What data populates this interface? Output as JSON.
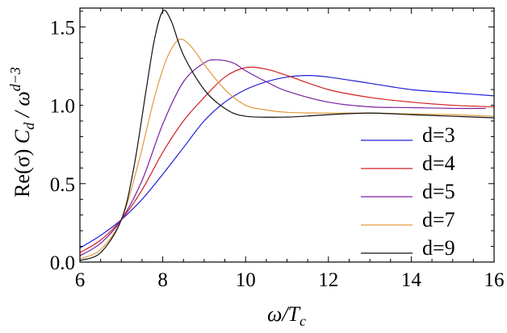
{
  "chart_data": {
    "type": "line",
    "title": "",
    "xlabel": "ω/T_c",
    "ylabel": "Re(σ) C_d / ω^(d−3)",
    "xlabel_parts": {
      "main": "ω/T",
      "sub": "c"
    },
    "ylabel_parts": {
      "pre": "Re(σ) ",
      "c": "C",
      "csub": "d",
      "mid": " / ω",
      "sup": "d−3"
    },
    "xlim": [
      6,
      16
    ],
    "ylim": [
      0,
      1.62
    ],
    "xticks": [
      6,
      8,
      10,
      12,
      14,
      16
    ],
    "xtick_labels": [
      "6",
      "8",
      "10",
      "12",
      "14",
      "16"
    ],
    "yticks": [
      0,
      0.5,
      1.0,
      1.5
    ],
    "ytick_labels": [
      "0.0",
      "0.5",
      "1.0",
      "1.5"
    ],
    "grid": false,
    "legend_position": "bottom-right",
    "series": [
      {
        "name": "d=3",
        "color": "#1f1fd6",
        "points": [
          [
            6,
            0.09
          ],
          [
            6.5,
            0.17
          ],
          [
            7,
            0.27
          ],
          [
            7.5,
            0.4
          ],
          [
            8,
            0.56
          ],
          [
            8.5,
            0.73
          ],
          [
            9,
            0.9
          ],
          [
            9.5,
            1.02
          ],
          [
            10,
            1.1
          ],
          [
            10.5,
            1.15
          ],
          [
            11,
            1.18
          ],
          [
            11.5,
            1.19
          ],
          [
            12,
            1.18
          ],
          [
            13,
            1.14
          ],
          [
            14,
            1.1
          ],
          [
            15,
            1.08
          ],
          [
            16,
            1.06
          ]
        ]
      },
      {
        "name": "d=4",
        "color": "#d11f1f",
        "points": [
          [
            6,
            0.06
          ],
          [
            6.5,
            0.14
          ],
          [
            7,
            0.27
          ],
          [
            7.5,
            0.46
          ],
          [
            8,
            0.7
          ],
          [
            8.5,
            0.9
          ],
          [
            9,
            1.05
          ],
          [
            9.5,
            1.18
          ],
          [
            10,
            1.24
          ],
          [
            10.5,
            1.23
          ],
          [
            11,
            1.19
          ],
          [
            12,
            1.1
          ],
          [
            13,
            1.05
          ],
          [
            14,
            1.02
          ],
          [
            15,
            1.0
          ],
          [
            16,
            0.99
          ]
        ]
      },
      {
        "name": "d=5",
        "color": "#7a1fa0",
        "points": [
          [
            6,
            0.04
          ],
          [
            6.5,
            0.12
          ],
          [
            7,
            0.27
          ],
          [
            7.5,
            0.52
          ],
          [
            8,
            0.88
          ],
          [
            8.5,
            1.15
          ],
          [
            9,
            1.27
          ],
          [
            9.3,
            1.29
          ],
          [
            9.7,
            1.27
          ],
          [
            10,
            1.22
          ],
          [
            10.5,
            1.15
          ],
          [
            11,
            1.09
          ],
          [
            12,
            1.02
          ],
          [
            13,
            0.99
          ],
          [
            14,
            0.985
          ],
          [
            15,
            0.98
          ],
          [
            15.8,
            0.98
          ]
        ]
      },
      {
        "name": "d=7",
        "color": "#e09a3c",
        "points": [
          [
            6,
            0.02
          ],
          [
            6.5,
            0.08
          ],
          [
            7,
            0.27
          ],
          [
            7.4,
            0.62
          ],
          [
            7.8,
            1.05
          ],
          [
            8.1,
            1.3
          ],
          [
            8.4,
            1.42
          ],
          [
            8.7,
            1.37
          ],
          [
            9,
            1.26
          ],
          [
            9.5,
            1.1
          ],
          [
            10,
            1.0
          ],
          [
            10.5,
            0.97
          ],
          [
            11,
            0.955
          ],
          [
            12,
            0.95
          ],
          [
            13,
            0.95
          ],
          [
            14,
            0.945
          ],
          [
            15,
            0.94
          ],
          [
            16,
            0.93
          ]
        ]
      },
      {
        "name": "d=9",
        "color": "#111111",
        "points": [
          [
            6,
            0.01
          ],
          [
            6.5,
            0.06
          ],
          [
            7,
            0.27
          ],
          [
            7.3,
            0.6
          ],
          [
            7.6,
            1.1
          ],
          [
            7.8,
            1.42
          ],
          [
            8,
            1.6
          ],
          [
            8.2,
            1.54
          ],
          [
            8.5,
            1.32
          ],
          [
            9,
            1.1
          ],
          [
            9.5,
            0.98
          ],
          [
            10,
            0.93
          ],
          [
            11,
            0.925
          ],
          [
            12,
            0.94
          ],
          [
            13,
            0.95
          ],
          [
            14,
            0.94
          ],
          [
            15,
            0.93
          ],
          [
            16,
            0.92
          ]
        ]
      }
    ]
  }
}
